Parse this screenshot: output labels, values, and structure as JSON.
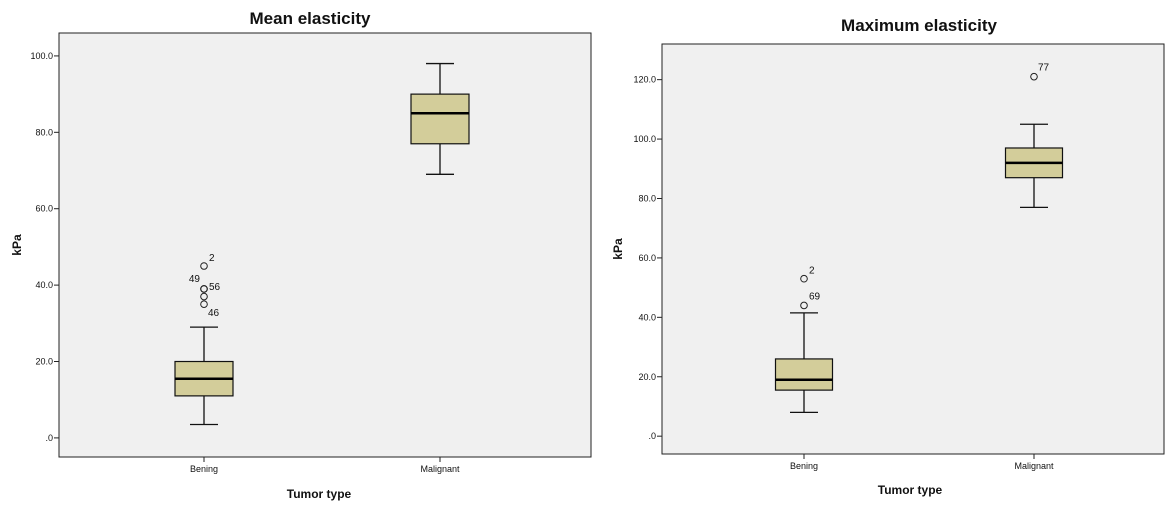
{
  "chart_data": [
    {
      "type": "boxplot",
      "title": "Mean elasticity",
      "xlabel": "Tumor type",
      "ylabel": "kPa",
      "categories": [
        "Bening",
        "Malignant"
      ],
      "ylim": [
        -5,
        106
      ],
      "yticks": [
        0,
        20,
        40,
        60,
        80,
        100
      ],
      "ytick_labels": [
        ".0",
        "20.0",
        "40.0",
        "60.0",
        "80.0",
        "100.0"
      ],
      "grid": false,
      "boxes": [
        {
          "category": "Bening",
          "whisker_low": 3.5,
          "q1": 11,
          "median": 15.5,
          "q3": 20,
          "whisker_high": 29,
          "outliers": [
            {
              "value": 45,
              "label": "2"
            },
            {
              "value": 39,
              "label": "49"
            },
            {
              "value": 39,
              "label": "56"
            },
            {
              "value": 37,
              "label": ""
            },
            {
              "value": 35,
              "label": "46"
            }
          ]
        },
        {
          "category": "Malignant",
          "whisker_low": 69,
          "q1": 77,
          "median": 85,
          "q3": 90,
          "whisker_high": 98,
          "outliers": []
        }
      ],
      "colors": {
        "box_fill": "#d3cd9a",
        "plot_bg": "#f0f0f0"
      }
    },
    {
      "type": "boxplot",
      "title": "Maximum elasticity",
      "xlabel": "Tumor type",
      "ylabel": "kPa",
      "categories": [
        "Bening",
        "Malignant"
      ],
      "ylim": [
        -6,
        132
      ],
      "yticks": [
        0,
        20,
        40,
        60,
        80,
        100,
        120
      ],
      "ytick_labels": [
        ".0",
        "20.0",
        "40.0",
        "60.0",
        "80.0",
        "100.0",
        "120.0"
      ],
      "grid": false,
      "boxes": [
        {
          "category": "Bening",
          "whisker_low": 8,
          "q1": 15.5,
          "median": 19,
          "q3": 26,
          "whisker_high": 41.5,
          "outliers": [
            {
              "value": 53,
              "label": "2"
            },
            {
              "value": 44,
              "label": "69"
            }
          ]
        },
        {
          "category": "Malignant",
          "whisker_low": 77,
          "q1": 87,
          "median": 92,
          "q3": 97,
          "whisker_high": 105,
          "outliers": [
            {
              "value": 121,
              "label": "77"
            }
          ]
        }
      ],
      "colors": {
        "box_fill": "#d3cd9a",
        "plot_bg": "#f0f0f0"
      }
    }
  ]
}
